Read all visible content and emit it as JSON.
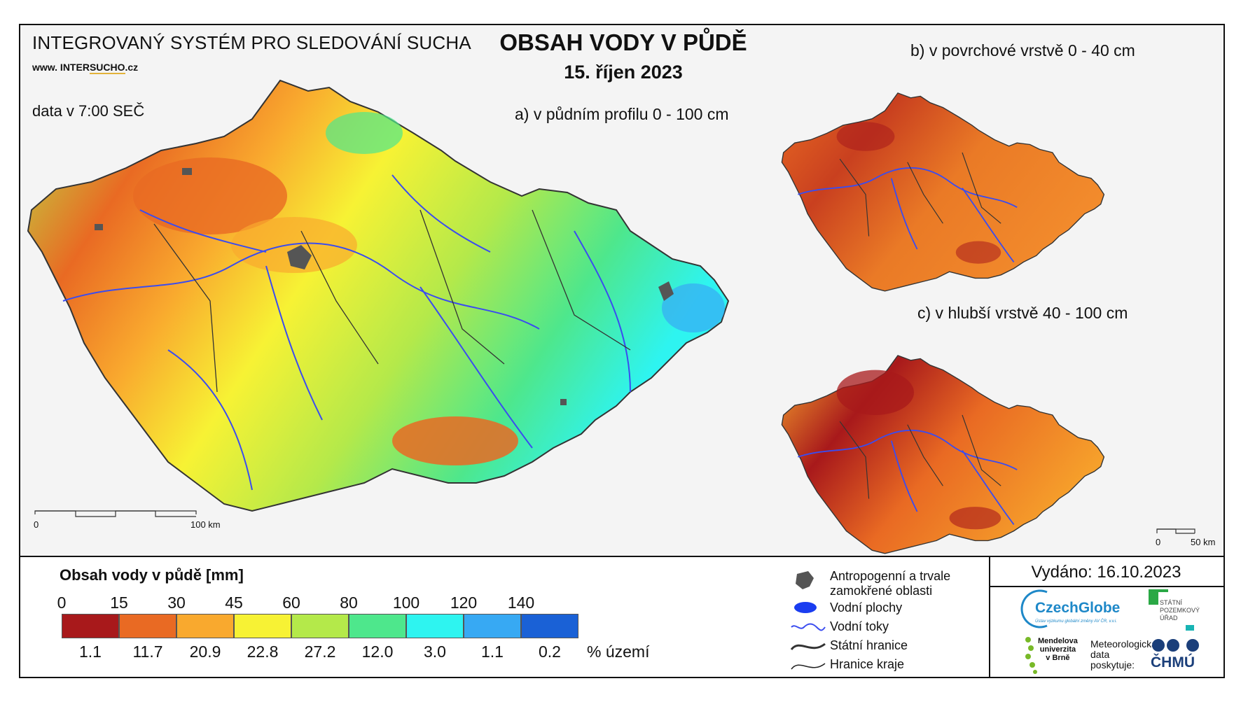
{
  "header": {
    "system_title": "INTEGROVANÝ SYSTÉM PRO SLEDOVÁNÍ SUCHA",
    "website_prefix": "www. INTER",
    "website_highlight": "SUCHO",
    "website_suffix": ".cz",
    "data_time": "data v 7:00 SEČ",
    "main_title": "OBSAH VODY V PŮDĚ",
    "date": "15. říjen 2023"
  },
  "maps": {
    "a_label": "a) v půdním profilu 0 - 100 cm",
    "b_label": "b) v povrchové vrstvě 0 - 40 cm",
    "c_label": "c) v hlubší vrstvě 40 - 100 cm",
    "scale_main_start": "0",
    "scale_main_end": "100 km",
    "scale_small_start": "0",
    "scale_small_end": "50 km"
  },
  "legend": {
    "title": "Obsah vody v půdě  [mm]",
    "breaks": [
      "0",
      "15",
      "30",
      "45",
      "60",
      "80",
      "100",
      "120",
      "140"
    ],
    "classes": [
      {
        "color": "#a8191b",
        "percent": "1.1"
      },
      {
        "color": "#e96a23",
        "percent": "11.7"
      },
      {
        "color": "#f9a92e",
        "percent": "20.9"
      },
      {
        "color": "#f7f234",
        "percent": "22.8"
      },
      {
        "color": "#b4e94a",
        "percent": "27.2"
      },
      {
        "color": "#4ee78c",
        "percent": "12.0"
      },
      {
        "color": "#2ef4f0",
        "percent": "3.0"
      },
      {
        "color": "#37a9f3",
        "percent": "1.1"
      },
      {
        "color": "#1a61d6",
        "percent": "0.2"
      }
    ],
    "percent_unit": "% území"
  },
  "symbols": {
    "anthropogenic": "Antropogenní a trvale zamokřené oblasti",
    "water_areas": "Vodní plochy",
    "water_streams": "Vodní toky",
    "state_border": "Státní hranice",
    "region_border": "Hranice kraje"
  },
  "footer": {
    "issued": "Vydáno: 16.10.2023",
    "czechglobe": "CzechGlobe",
    "czechglobe_sub": "Ústav výzkumu globální změny AV ČR, v.v.i.",
    "spu_line1": "STÁTNÍ",
    "spu_line2": "POZEMKOVÝ",
    "spu_line3": "ÚŘAD",
    "mendel_line1": "Mendelova",
    "mendel_line2": "univerzita",
    "mendel_line3": "v Brně",
    "meteo_line1": "Meteorologická",
    "meteo_line2": "data",
    "meteo_line3": "poskytuje:",
    "chmu": "ČHMÚ"
  },
  "colors": {
    "anthropogenic": "#555555",
    "river": "#3a4cf0",
    "czechglobe_blue": "#1e88c8",
    "spu_green": "#2aa845",
    "spu_teal": "#18b4b4",
    "mendel_green": "#78b928",
    "chmu_navy": "#1b3f7a"
  }
}
